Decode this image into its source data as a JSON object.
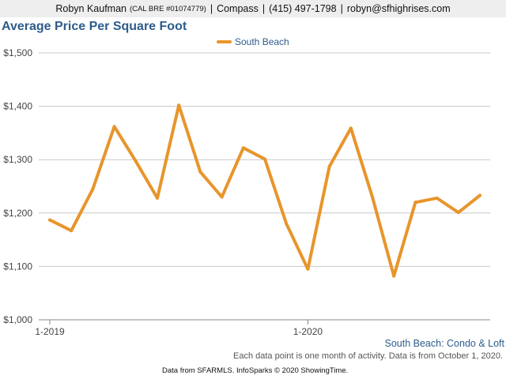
{
  "header": {
    "name": "Robyn Kaufman",
    "license": "(CAL BRE #01074779)",
    "separator": "|",
    "company": "Compass",
    "phone": "(415) 497-1798",
    "email": "robyn@sfhighrises.com"
  },
  "chart_data": {
    "type": "line",
    "title": "Average Price Per Square Foot",
    "subtitle": "South Beach: Condo & Loft",
    "footnote": "Each data point is one month of activity. Data is from October 1, 2020.",
    "credits": "Data from SFARMLS. InfoSparks © 2020 ShowingTime.",
    "x": [
      "2019-01",
      "2019-02",
      "2019-03",
      "2019-04",
      "2019-05",
      "2019-06",
      "2019-07",
      "2019-08",
      "2019-09",
      "2019-10",
      "2019-11",
      "2019-12",
      "2020-01",
      "2020-02",
      "2020-03",
      "2020-04",
      "2020-05",
      "2020-06",
      "2020-07",
      "2020-08",
      "2020-09"
    ],
    "x_tick_labels": [
      {
        "value": "2019-01",
        "label": "1-2019"
      },
      {
        "value": "2020-01",
        "label": "1-2020"
      }
    ],
    "series": [
      {
        "name": "South Beach",
        "color": "#e8952c",
        "values": [
          1187,
          1167,
          1245,
          1362,
          1297,
          1228,
          1402,
          1277,
          1230,
          1322,
          1301,
          1180,
          1095,
          1287,
          1359,
          1230,
          1082,
          1220,
          1228,
          1201,
          1233
        ]
      }
    ],
    "ylim": [
      1000,
      1500
    ],
    "y_ticks": [
      {
        "value": 1000,
        "label": "$1,000"
      },
      {
        "value": 1100,
        "label": "$1,100"
      },
      {
        "value": 1200,
        "label": "$1,200"
      },
      {
        "value": 1300,
        "label": "$1,300"
      },
      {
        "value": 1400,
        "label": "$1,400"
      },
      {
        "value": 1500,
        "label": "$1,500"
      }
    ],
    "grid": true,
    "legend_position": "top-center"
  }
}
